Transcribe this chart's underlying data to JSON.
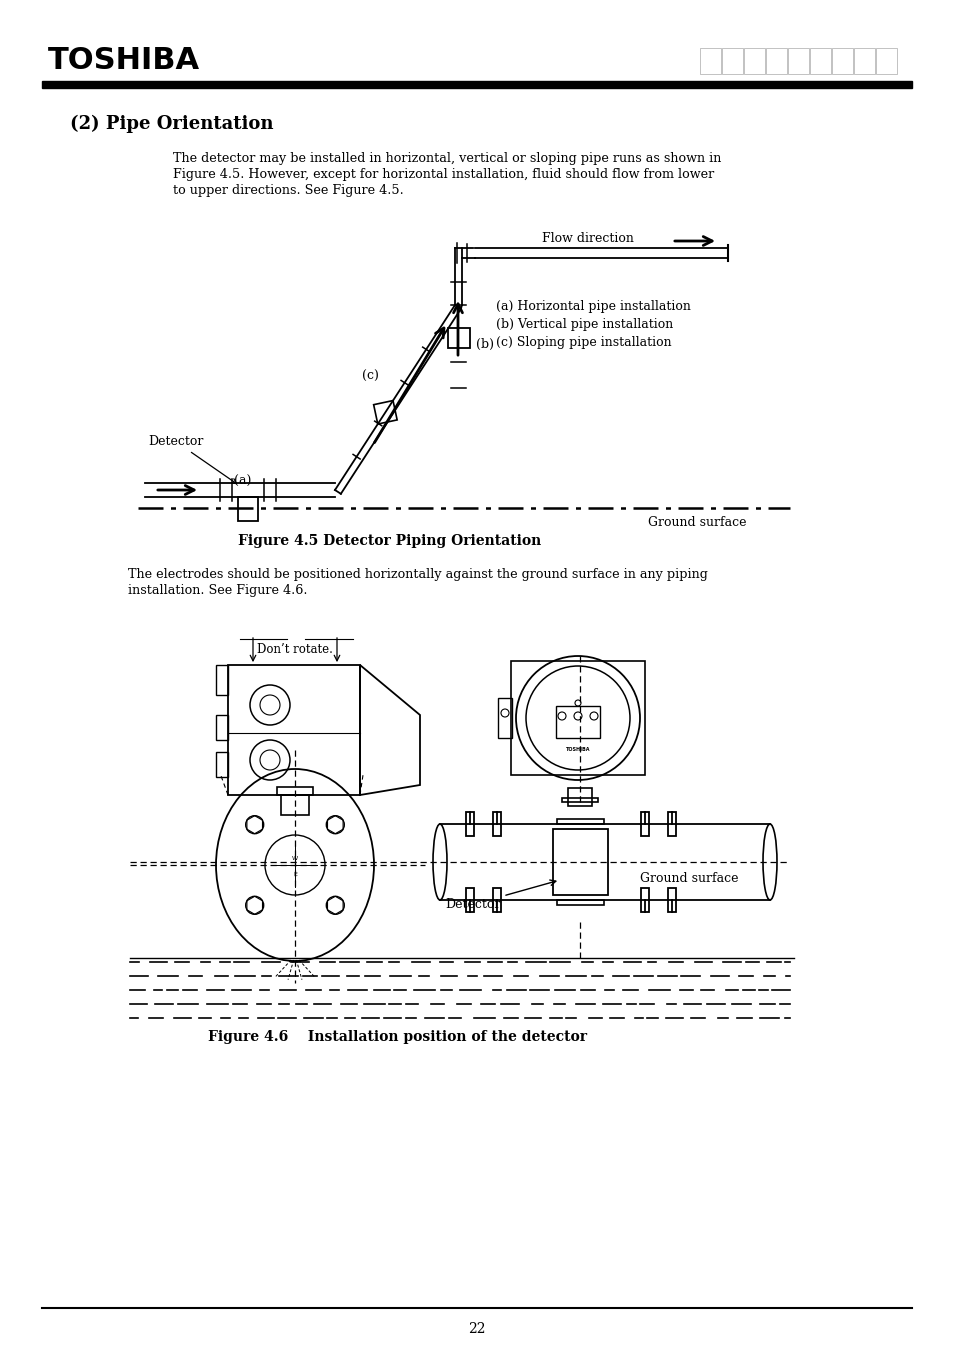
{
  "title": "(2) Pipe Orientation",
  "toshiba_text": "TOSHIBA",
  "body_text1_l1": "The detector may be installed in horizontal, vertical or sloping pipe runs as shown in",
  "body_text1_l2": "Figure 4.5. However, except for horizontal installation, fluid should flow from lower",
  "body_text1_l3": "to upper directions. See Figure 4.5.",
  "body_text2_l1": "The electrodes should be positioned horizontally against the ground surface in any piping",
  "body_text2_l2": "installation. See Figure 4.6.",
  "fig45_caption": "Figure 4.5 Detector Piping Orientation",
  "fig46_caption": "Figure 4.6    Installation position of the detector",
  "legend_a": "(a) Horizontal pipe installation",
  "legend_b": "(b) Vertical pipe installation",
  "legend_c": "(c) Sloping pipe installation",
  "label_detector": "Detector",
  "label_a": "(a)",
  "label_b": "(b)",
  "label_c": "(c)",
  "label_flow": "Flow direction",
  "label_ground1": "Ground surface",
  "label_ground2": "Ground surface",
  "label_detector2": "Detector",
  "label_dont_rotate": "Don’t rotate.",
  "page_number": "22",
  "bg_color": "#ffffff",
  "text_color": "#000000"
}
